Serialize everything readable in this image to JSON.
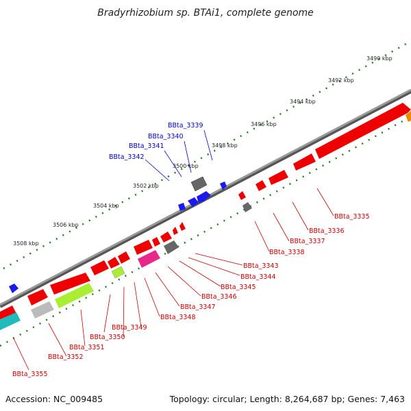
{
  "map": {
    "title": "Bradyrhizobium sp. BTAi1, complete genome",
    "accession": "Accession: NC_009485",
    "summary": "Topology: circular; Length: 8,264,687 bp; Genes: 7,463"
  },
  "ruler": [
    "3490 kbp",
    "3492 kbp",
    "3494 kbp",
    "3496 kbp",
    "3498 kbp",
    "3500 kbp",
    "3502 kbp",
    "3504 kbp",
    "3506 kbp",
    "3508 kbp"
  ],
  "labels_forward": [
    "BBta_3339",
    "BBta_3340",
    "BBta_3341",
    "BBta_3342"
  ],
  "labels_reverse": [
    "BBta_3335",
    "BBta_3336",
    "BBta_3337",
    "BBta_3338",
    "BBta_3343",
    "BBta_3344",
    "BBta_3345",
    "BBta_3346",
    "BBta_3347",
    "BBta_3348",
    "BBta_3349",
    "BBta_3350",
    "BBta_3351",
    "BBta_3352",
    "BBta_3355"
  ],
  "colors": {
    "forward_gene": "#1a1aee",
    "reverse_gene": "#ee0000",
    "backbone": "#808080",
    "tick": "#227a22",
    "hypothetical": "#666666",
    "pink": "#e8278a",
    "lime": "#aaee33",
    "gray_light": "#bbbbbb",
    "cyan": "#22bbbb",
    "orange": "#ee8800"
  }
}
